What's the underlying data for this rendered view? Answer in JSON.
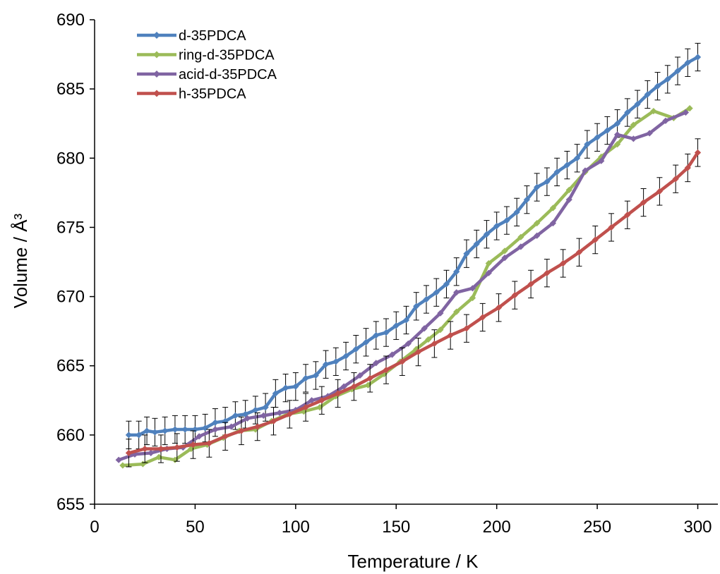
{
  "chart_data": {
    "type": "line",
    "xlabel": "Temperature / K",
    "ylabel": "Volume / Å³",
    "xlim": [
      0,
      310
    ],
    "ylim": [
      655,
      690
    ],
    "xticks": [
      0,
      50,
      100,
      150,
      200,
      250,
      300
    ],
    "yticks": [
      655,
      660,
      665,
      670,
      675,
      680,
      685,
      690
    ],
    "grid": false,
    "legend_position": "top-left",
    "error_bar_half_width": 1.0,
    "series": [
      {
        "name": "d-35PDCA",
        "color": "#4F81BD",
        "error_bars": true,
        "points": [
          [
            17,
            660.0
          ],
          [
            22,
            660.0
          ],
          [
            26,
            660.3
          ],
          [
            30,
            660.2
          ],
          [
            35,
            660.3
          ],
          [
            40,
            660.4
          ],
          [
            45,
            660.4
          ],
          [
            50,
            660.4
          ],
          [
            55,
            660.5
          ],
          [
            60,
            660.9
          ],
          [
            65,
            661.0
          ],
          [
            70,
            661.4
          ],
          [
            75,
            661.5
          ],
          [
            80,
            661.8
          ],
          [
            85,
            662.0
          ],
          [
            90,
            663.0
          ],
          [
            95,
            663.4
          ],
          [
            100,
            663.5
          ],
          [
            105,
            664.1
          ],
          [
            110,
            664.3
          ],
          [
            115,
            665.1
          ],
          [
            120,
            665.3
          ],
          [
            125,
            665.7
          ],
          [
            130,
            666.2
          ],
          [
            135,
            666.7
          ],
          [
            140,
            667.2
          ],
          [
            145,
            667.4
          ],
          [
            150,
            667.9
          ],
          [
            155,
            668.3
          ],
          [
            160,
            669.3
          ],
          [
            165,
            669.8
          ],
          [
            170,
            670.3
          ],
          [
            175,
            670.9
          ],
          [
            180,
            671.8
          ],
          [
            185,
            673.1
          ],
          [
            190,
            673.8
          ],
          [
            195,
            674.5
          ],
          [
            200,
            675.1
          ],
          [
            205,
            675.5
          ],
          [
            210,
            676.1
          ],
          [
            215,
            677.0
          ],
          [
            220,
            677.9
          ],
          [
            225,
            678.3
          ],
          [
            230,
            679.0
          ],
          [
            235,
            679.5
          ],
          [
            240,
            680.0
          ],
          [
            245,
            681.0
          ],
          [
            250,
            681.5
          ],
          [
            255,
            682.0
          ],
          [
            260,
            682.5
          ],
          [
            265,
            683.3
          ],
          [
            270,
            683.9
          ],
          [
            275,
            684.6
          ],
          [
            280,
            685.2
          ],
          [
            285,
            685.7
          ],
          [
            290,
            686.3
          ],
          [
            295,
            686.9
          ],
          [
            300,
            687.3
          ]
        ]
      },
      {
        "name": "ring-d-35PDCA",
        "color": "#9BBB59",
        "error_bars": false,
        "points": [
          [
            14,
            657.8
          ],
          [
            24,
            657.9
          ],
          [
            32,
            658.4
          ],
          [
            40,
            658.2
          ],
          [
            48,
            659.0
          ],
          [
            56,
            659.3
          ],
          [
            64,
            659.8
          ],
          [
            72,
            660.3
          ],
          [
            80,
            660.4
          ],
          [
            88,
            661.0
          ],
          [
            96,
            661.5
          ],
          [
            104,
            661.7
          ],
          [
            112,
            662.0
          ],
          [
            120,
            662.8
          ],
          [
            128,
            663.3
          ],
          [
            136,
            663.6
          ],
          [
            144,
            664.4
          ],
          [
            152,
            665.3
          ],
          [
            160,
            666.2
          ],
          [
            166,
            666.9
          ],
          [
            172,
            667.6
          ],
          [
            180,
            668.9
          ],
          [
            188,
            669.9
          ],
          [
            196,
            672.4
          ],
          [
            204,
            673.3
          ],
          [
            212,
            674.3
          ],
          [
            220,
            675.3
          ],
          [
            228,
            676.4
          ],
          [
            236,
            677.7
          ],
          [
            244,
            679.0
          ],
          [
            252,
            680.1
          ],
          [
            260,
            681.0
          ],
          [
            268,
            682.4
          ],
          [
            278,
            683.4
          ],
          [
            288,
            682.9
          ],
          [
            296,
            683.6
          ]
        ]
      },
      {
        "name": "acid-d-35PDCA",
        "color": "#8064A2",
        "error_bars": false,
        "points": [
          [
            12,
            658.2
          ],
          [
            20,
            658.6
          ],
          [
            28,
            658.7
          ],
          [
            36,
            659.0
          ],
          [
            44,
            659.1
          ],
          [
            52,
            659.9
          ],
          [
            60,
            660.4
          ],
          [
            68,
            660.6
          ],
          [
            76,
            661.2
          ],
          [
            84,
            661.4
          ],
          [
            92,
            661.6
          ],
          [
            100,
            661.8
          ],
          [
            108,
            662.5
          ],
          [
            116,
            662.8
          ],
          [
            124,
            663.5
          ],
          [
            132,
            664.3
          ],
          [
            140,
            665.2
          ],
          [
            148,
            665.8
          ],
          [
            156,
            666.6
          ],
          [
            164,
            667.7
          ],
          [
            172,
            668.8
          ],
          [
            180,
            670.3
          ],
          [
            188,
            670.6
          ],
          [
            196,
            671.7
          ],
          [
            204,
            672.8
          ],
          [
            212,
            673.6
          ],
          [
            220,
            674.4
          ],
          [
            228,
            675.3
          ],
          [
            236,
            677.0
          ],
          [
            244,
            679.1
          ],
          [
            252,
            679.8
          ],
          [
            260,
            681.7
          ],
          [
            268,
            681.4
          ],
          [
            276,
            681.8
          ],
          [
            284,
            682.7
          ],
          [
            294,
            683.3
          ]
        ]
      },
      {
        "name": "h-35PDCA",
        "color": "#C0504D",
        "error_bars": true,
        "points": [
          [
            17,
            658.7
          ],
          [
            25,
            659.0
          ],
          [
            33,
            659.0
          ],
          [
            41,
            659.1
          ],
          [
            49,
            659.3
          ],
          [
            57,
            659.4
          ],
          [
            65,
            659.9
          ],
          [
            73,
            660.3
          ],
          [
            81,
            660.6
          ],
          [
            89,
            661.0
          ],
          [
            97,
            661.5
          ],
          [
            105,
            662.0
          ],
          [
            113,
            662.5
          ],
          [
            121,
            663.0
          ],
          [
            129,
            663.5
          ],
          [
            137,
            664.1
          ],
          [
            145,
            664.7
          ],
          [
            153,
            665.3
          ],
          [
            161,
            666.0
          ],
          [
            169,
            666.6
          ],
          [
            177,
            667.2
          ],
          [
            185,
            667.7
          ],
          [
            193,
            668.5
          ],
          [
            201,
            669.2
          ],
          [
            209,
            670.1
          ],
          [
            217,
            670.9
          ],
          [
            225,
            671.7
          ],
          [
            233,
            672.4
          ],
          [
            241,
            673.2
          ],
          [
            249,
            674.1
          ],
          [
            257,
            675.0
          ],
          [
            265,
            675.9
          ],
          [
            273,
            676.8
          ],
          [
            281,
            677.6
          ],
          [
            289,
            678.5
          ],
          [
            295,
            679.3
          ],
          [
            300,
            680.4
          ]
        ]
      }
    ]
  }
}
